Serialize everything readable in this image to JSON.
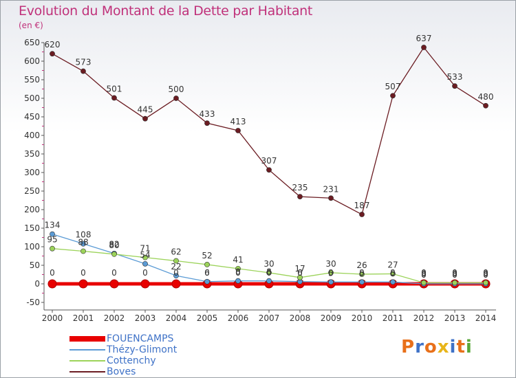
{
  "title": "Evolution du Montant de la Dette par Habitant",
  "unit_label": "(en €)",
  "logo_text": "Proxiti",
  "chart_data": {
    "type": "line",
    "x": [
      "2000",
      "2001",
      "2002",
      "2003",
      "2004",
      "2005",
      "2006",
      "2007",
      "2008",
      "2009",
      "2010",
      "2011",
      "2012",
      "2013",
      "2014"
    ],
    "ylim": [
      -50,
      650
    ],
    "yticks": [
      -50,
      0,
      50,
      100,
      150,
      200,
      250,
      300,
      350,
      400,
      450,
      500,
      550,
      600,
      650
    ],
    "grid": false,
    "legend_position": "bottom-left",
    "series": [
      {
        "name": "FOUENCAMPS",
        "color": "#e80000",
        "values": [
          0,
          0,
          0,
          0,
          0,
          0,
          0,
          0,
          0,
          0,
          0,
          0,
          0,
          0,
          0
        ],
        "labels": [
          "0",
          "0",
          "0",
          "0",
          "0",
          "0",
          "0",
          "0",
          "0",
          "0",
          "0",
          "0",
          "0",
          "0",
          "0"
        ]
      },
      {
        "name": "Thézy-Glimont",
        "color": "#5b9bd5",
        "values": [
          134,
          108,
          82,
          54,
          22,
          6,
          8,
          8,
          6,
          5,
          5,
          5,
          0,
          0,
          0
        ],
        "labels": [
          "134",
          "108",
          "82",
          "54",
          "22",
          "6",
          "8",
          "8",
          "6",
          "5",
          "5",
          "5",
          "0",
          "0",
          "0"
        ]
      },
      {
        "name": "Cottenchy",
        "color": "#9cd35a",
        "values": [
          95,
          88,
          80,
          71,
          62,
          52,
          41,
          30,
          17,
          30,
          26,
          27,
          3,
          3,
          3
        ],
        "labels": [
          "95",
          "88",
          "80",
          "71",
          "62",
          "52",
          "41",
          "30",
          "17",
          "30",
          "26",
          "27",
          "3",
          "3",
          "3"
        ]
      },
      {
        "name": "Boves",
        "color": "#6b1c22",
        "values": [
          620,
          573,
          501,
          445,
          500,
          433,
          413,
          307,
          235,
          231,
          187,
          507,
          637,
          533,
          480
        ],
        "labels": [
          "620",
          "573",
          "501",
          "445",
          "500",
          "433",
          "413",
          "307",
          "235",
          "231",
          "187",
          "507",
          "637",
          "533",
          "480"
        ]
      }
    ]
  },
  "logo_colors": [
    "#e8701a",
    "#3f72c7",
    "#e8701a",
    "#e8b51a",
    "#3f72c7",
    "#e8701a",
    "#59a83a"
  ]
}
